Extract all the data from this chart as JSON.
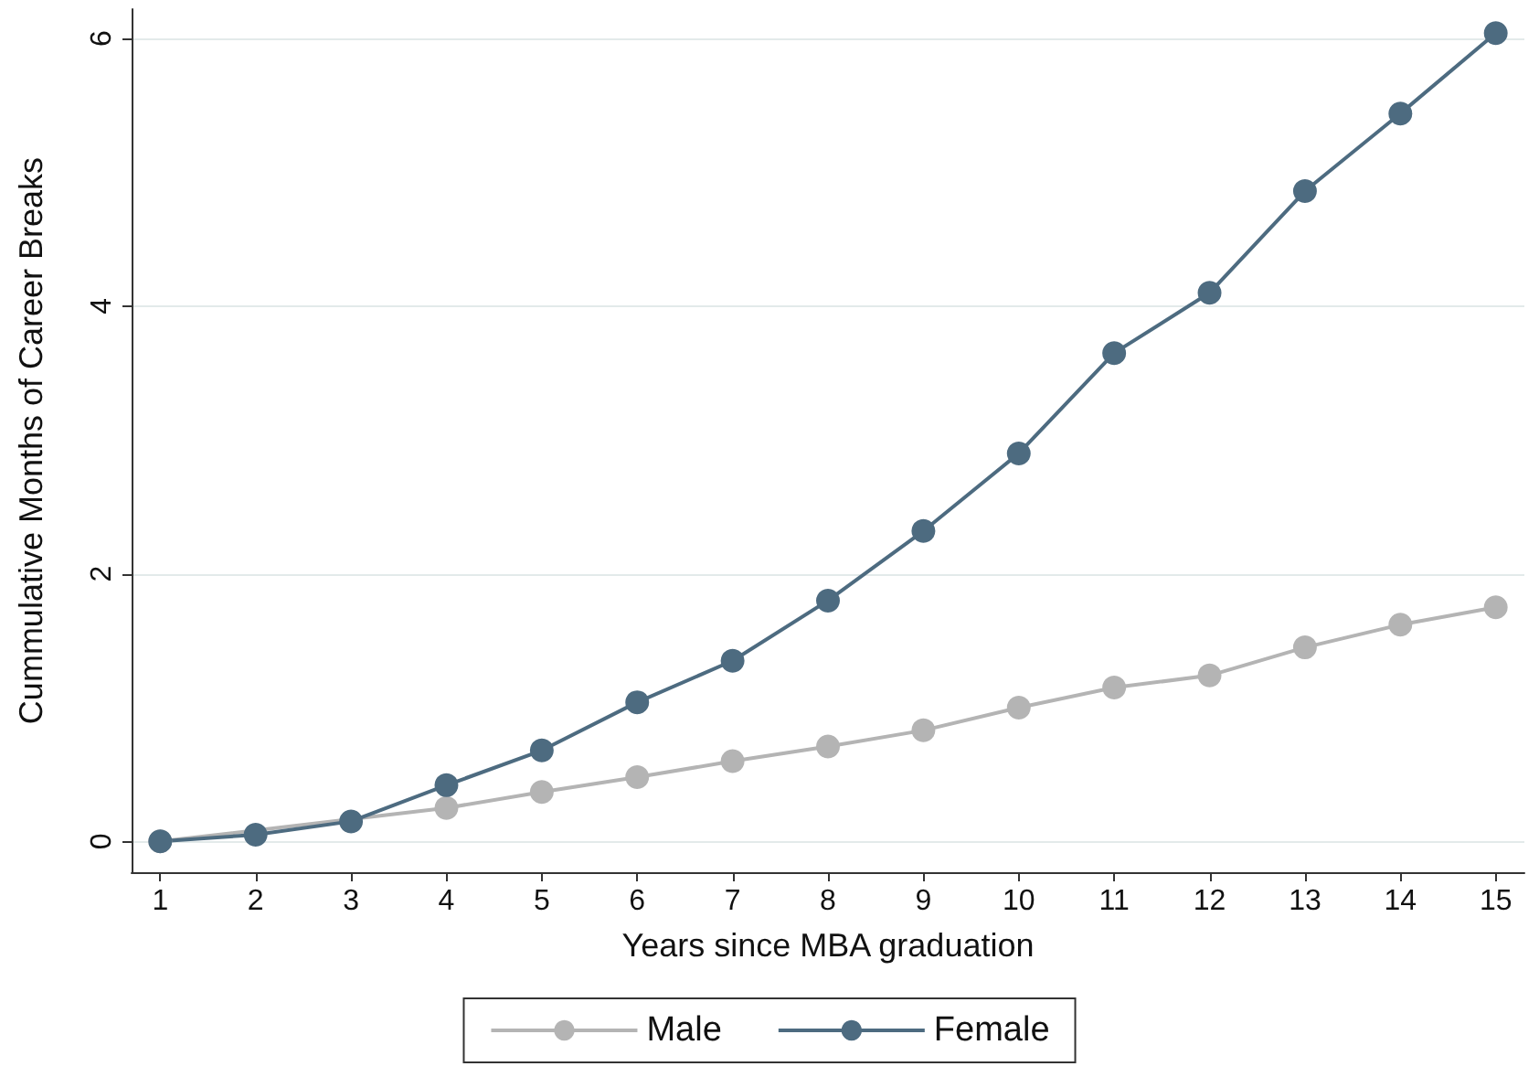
{
  "chart_data": {
    "type": "line",
    "xlabel": "Years since MBA graduation",
    "ylabel": "Cummulative Months of Career Breaks",
    "x": [
      1,
      2,
      3,
      4,
      5,
      6,
      7,
      8,
      9,
      10,
      11,
      12,
      13,
      14,
      15
    ],
    "series": [
      {
        "name": "Male",
        "color": "#b4b4b4",
        "values": [
          0,
          null,
          null,
          0.25,
          0.37,
          0.48,
          0.6,
          0.71,
          0.83,
          1.0,
          1.15,
          1.24,
          1.45,
          1.62,
          1.75
        ]
      },
      {
        "name": "Female",
        "color": "#4d6b80",
        "values": [
          0,
          0.05,
          0.15,
          0.42,
          0.68,
          1.04,
          1.35,
          1.8,
          2.32,
          2.9,
          3.65,
          4.1,
          4.86,
          5.44,
          6.04
        ]
      }
    ],
    "xlim": [
      0.7,
      15.3
    ],
    "xticks": [
      1,
      2,
      3,
      4,
      5,
      6,
      7,
      8,
      9,
      10,
      11,
      12,
      13,
      14,
      15
    ],
    "ylim": [
      -0.23,
      6.22
    ],
    "yticks": [
      0,
      2,
      4,
      6
    ],
    "grid": "y",
    "legend": "bottom",
    "marker": "circle",
    "line_style": "solid"
  }
}
